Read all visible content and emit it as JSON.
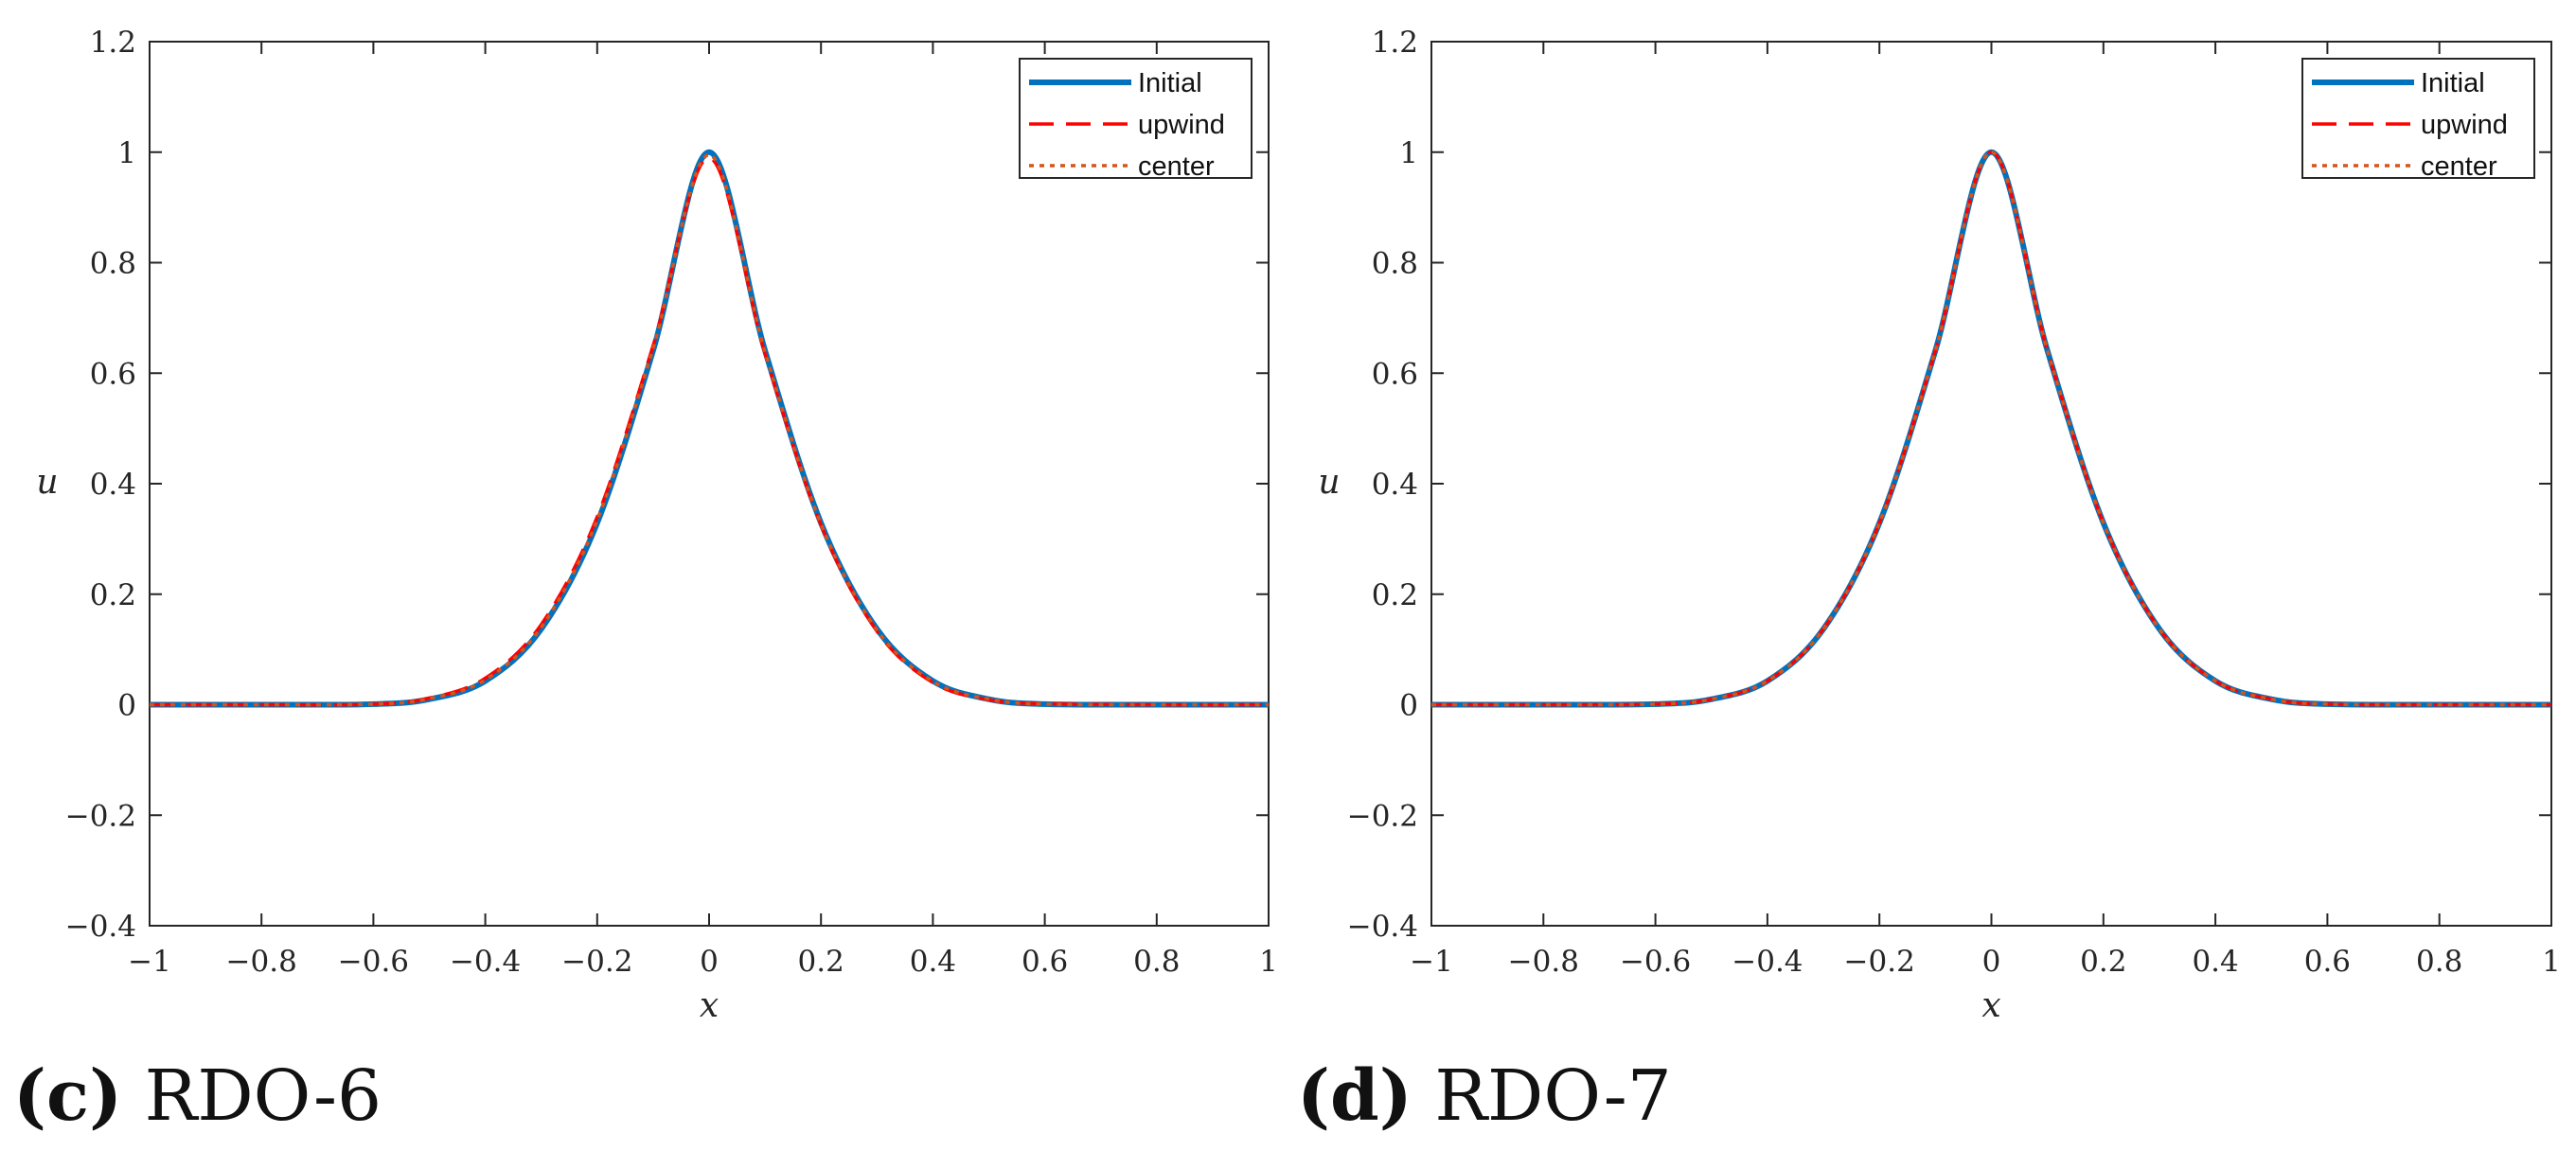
{
  "chart_data": [
    {
      "type": "line",
      "caption_letter": "(c)",
      "caption_text": "RDO-6",
      "xlabel": "x",
      "ylabel": "u",
      "xlim": [
        -1,
        1
      ],
      "ylim": [
        -0.4,
        1.2
      ],
      "xticks": [
        -1,
        -0.8,
        -0.6,
        -0.4,
        -0.2,
        0,
        0.2,
        0.4,
        0.6,
        0.8,
        1
      ],
      "xtick_labels": [
        "−1",
        "−0.8",
        "−0.6",
        "−0.4",
        "−0.2",
        "0",
        "0.2",
        "0.4",
        "0.6",
        "0.8",
        "1"
      ],
      "yticks": [
        -0.4,
        -0.2,
        0,
        0.2,
        0.4,
        0.6,
        0.8,
        1,
        1.2
      ],
      "ytick_labels": [
        "−0.4",
        "−0.2",
        "0",
        "0.2",
        "0.4",
        "0.6",
        "0.8",
        "1",
        "1.2"
      ],
      "grid": false,
      "legend_position": "top-right",
      "series": [
        {
          "name": "Initial",
          "color": "#0072bd",
          "style": "solid",
          "x": [
            -1,
            -0.8,
            -0.6,
            -0.5,
            -0.4,
            -0.3,
            -0.2,
            -0.1,
            0,
            0.1,
            0.2,
            0.3,
            0.4,
            0.5,
            0.6,
            0.8,
            1
          ],
          "y": [
            0,
            0,
            0.001,
            0.01,
            0.043,
            0.137,
            0.329,
            0.641,
            1,
            0.641,
            0.329,
            0.137,
            0.043,
            0.01,
            0.001,
            0,
            0
          ]
        },
        {
          "name": "upwind",
          "color": "#ff0000",
          "style": "dashed",
          "x": [
            -1,
            -0.8,
            -0.6,
            -0.5,
            -0.4,
            -0.3,
            -0.2,
            -0.1,
            0,
            0.1,
            0.2,
            0.3,
            0.4,
            0.5,
            0.6,
            0.8,
            1
          ],
          "y": [
            0,
            0,
            0.001,
            0.012,
            0.048,
            0.145,
            0.34,
            0.65,
            0.99,
            0.635,
            0.325,
            0.133,
            0.04,
            0.009,
            0.002,
            0,
            0
          ]
        },
        {
          "name": "center",
          "color": "#d95319",
          "style": "dotted",
          "x": [
            -1,
            -0.8,
            -0.6,
            -0.5,
            -0.4,
            -0.3,
            -0.2,
            -0.1,
            0,
            0.1,
            0.2,
            0.3,
            0.4,
            0.5,
            0.6,
            0.8,
            1
          ],
          "y": [
            0,
            0,
            0.001,
            0.011,
            0.045,
            0.14,
            0.334,
            0.645,
            0.995,
            0.638,
            0.327,
            0.135,
            0.042,
            0.01,
            0.001,
            0,
            0
          ]
        }
      ]
    },
    {
      "type": "line",
      "caption_letter": "(d)",
      "caption_text": "RDO-7",
      "xlabel": "x",
      "ylabel": "u",
      "xlim": [
        -1,
        1
      ],
      "ylim": [
        -0.4,
        1.2
      ],
      "xticks": [
        -1,
        -0.8,
        -0.6,
        -0.4,
        -0.2,
        0,
        0.2,
        0.4,
        0.6,
        0.8,
        1
      ],
      "xtick_labels": [
        "−1",
        "−0.8",
        "−0.6",
        "−0.4",
        "−0.2",
        "0",
        "0.2",
        "0.4",
        "0.6",
        "0.8",
        "1"
      ],
      "yticks": [
        -0.4,
        -0.2,
        0,
        0.2,
        0.4,
        0.6,
        0.8,
        1,
        1.2
      ],
      "ytick_labels": [
        "−0.4",
        "−0.2",
        "0",
        "0.2",
        "0.4",
        "0.6",
        "0.8",
        "1",
        "1.2"
      ],
      "grid": false,
      "legend_position": "top-right",
      "series": [
        {
          "name": "Initial",
          "color": "#0072bd",
          "style": "solid",
          "x": [
            -1,
            -0.8,
            -0.6,
            -0.5,
            -0.4,
            -0.3,
            -0.2,
            -0.1,
            0,
            0.1,
            0.2,
            0.3,
            0.4,
            0.5,
            0.6,
            0.8,
            1
          ],
          "y": [
            0,
            0,
            0.001,
            0.01,
            0.043,
            0.137,
            0.329,
            0.641,
            1,
            0.641,
            0.329,
            0.137,
            0.043,
            0.01,
            0.001,
            0,
            0
          ]
        },
        {
          "name": "upwind",
          "color": "#ff0000",
          "style": "dashed",
          "x": [
            -1,
            -0.8,
            -0.6,
            -0.5,
            -0.4,
            -0.3,
            -0.2,
            -0.1,
            0,
            0.1,
            0.2,
            0.3,
            0.4,
            0.5,
            0.6,
            0.8,
            1
          ],
          "y": [
            0,
            0,
            0.001,
            0.01,
            0.043,
            0.137,
            0.329,
            0.641,
            1,
            0.641,
            0.329,
            0.137,
            0.043,
            0.01,
            0.001,
            0,
            0
          ]
        },
        {
          "name": "center",
          "color": "#d95319",
          "style": "dotted",
          "x": [
            -1,
            -0.8,
            -0.6,
            -0.5,
            -0.4,
            -0.3,
            -0.2,
            -0.1,
            0,
            0.1,
            0.2,
            0.3,
            0.4,
            0.5,
            0.6,
            0.8,
            1
          ],
          "y": [
            0,
            0,
            0.001,
            0.01,
            0.043,
            0.137,
            0.329,
            0.641,
            1,
            0.641,
            0.329,
            0.137,
            0.043,
            0.01,
            0.001,
            0,
            0
          ]
        }
      ]
    }
  ]
}
